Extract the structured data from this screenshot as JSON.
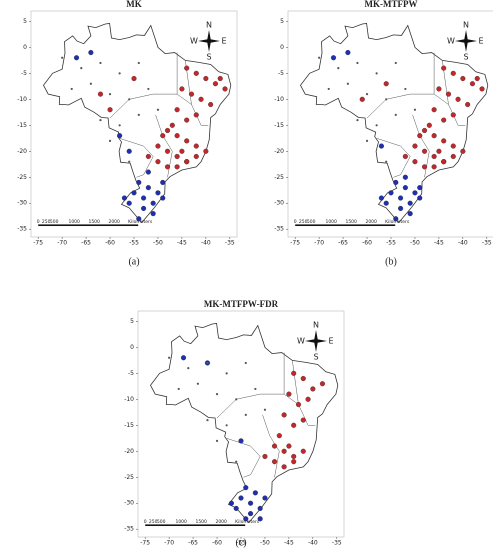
{
  "chart_data": [
    {
      "type": "scatter",
      "title": "MK",
      "caption": "(a)",
      "xlim": [
        -76.5,
        -33.5
      ],
      "ylim": [
        -36.5,
        7
      ],
      "xticks": [
        -75,
        -70,
        -65,
        -60,
        -55,
        -50,
        -45,
        -40,
        -35
      ],
      "yticks": [
        5,
        0,
        -5,
        -10,
        -15,
        -20,
        -25,
        -30,
        -35
      ],
      "compass": [
        "N",
        "S",
        "W",
        "E"
      ],
      "scale_labels": [
        "0",
        "250",
        "500",
        "1000",
        "1500",
        "2000",
        "Kilometers"
      ],
      "series": [
        {
          "color": "#c0282b",
          "x": [
            -44,
            -42,
            -40,
            -38,
            -36,
            -45,
            -43,
            -41,
            -39,
            -37,
            -46,
            -44,
            -42,
            -48,
            -46,
            -44,
            -42,
            -40,
            -50,
            -48,
            -46,
            -44,
            -42,
            -52,
            -50,
            -48,
            -46,
            -44,
            -49,
            -47,
            -45,
            -62,
            -55,
            -60
          ],
          "y": [
            -4,
            -5,
            -6,
            -7,
            -8,
            -8,
            -9,
            -10,
            -11,
            -6,
            -12,
            -14,
            -13,
            -16,
            -17,
            -18,
            -19,
            -20,
            -19,
            -20,
            -21,
            -22,
            -21,
            -21,
            -22,
            -23,
            -23,
            -22,
            -17,
            -15,
            -20,
            -9,
            -6,
            -12
          ]
        },
        {
          "color": "#1f2fb0",
          "x": [
            -54,
            -52,
            -50,
            -53,
            -51,
            -49,
            -55,
            -53,
            -51,
            -56,
            -54,
            -52,
            -57,
            -49,
            -67,
            -64,
            -56,
            -58
          ],
          "y": [
            -26,
            -27,
            -28,
            -29,
            -30,
            -29,
            -28,
            -31,
            -32,
            -30,
            -33,
            -24,
            -29,
            -26,
            -2,
            -1,
            -20,
            -17
          ]
        },
        {
          "color": "#555555",
          "x": [
            -70,
            -66,
            -62,
            -58,
            -54,
            -68,
            -64,
            -60,
            -56,
            -52,
            -62,
            -58,
            -54,
            -50,
            -60,
            -56
          ],
          "y": [
            -2,
            -4,
            -3,
            -5,
            -3,
            -8,
            -7,
            -9,
            -10,
            -8,
            -14,
            -15,
            -13,
            -12,
            -18,
            -22
          ]
        }
      ]
    },
    {
      "type": "scatter",
      "title": "MK-MTFPW",
      "caption": "(b)",
      "xlim": [
        -76.5,
        -33.5
      ],
      "ylim": [
        -36.5,
        7
      ],
      "xticks": [
        -75,
        -70,
        -65,
        -60,
        -55,
        -50,
        -45,
        -40,
        -35
      ],
      "yticks": [
        5,
        0,
        -5,
        -10,
        -15,
        -20,
        -25,
        -30,
        -35
      ],
      "compass": [
        "N",
        "S",
        "W",
        "E"
      ],
      "scale_labels": [
        "0",
        "250",
        "500",
        "1000",
        "1500",
        "2000",
        "Kilometers"
      ],
      "series": [
        {
          "color": "#c0282b",
          "x": [
            -44,
            -42,
            -40,
            -38,
            -36,
            -45,
            -43,
            -41,
            -39,
            -37,
            -46,
            -44,
            -42,
            -48,
            -46,
            -44,
            -42,
            -40,
            -50,
            -48,
            -46,
            -44,
            -42,
            -52,
            -50,
            -48,
            -46,
            -44,
            -49,
            -47,
            -45,
            -61,
            -56
          ],
          "y": [
            -4,
            -5,
            -6,
            -7,
            -8,
            -8,
            -9,
            -10,
            -11,
            -6,
            -12,
            -14,
            -13,
            -16,
            -17,
            -18,
            -19,
            -20,
            -19,
            -20,
            -21,
            -22,
            -21,
            -21,
            -22,
            -23,
            -23,
            -22,
            -17,
            -15,
            -20,
            -10,
            -7
          ]
        },
        {
          "color": "#1f2fb0",
          "x": [
            -54,
            -52,
            -50,
            -53,
            -51,
            -49,
            -55,
            -53,
            -51,
            -56,
            -54,
            -52,
            -57,
            -49,
            -67,
            -64,
            -57
          ],
          "y": [
            -26,
            -27,
            -28,
            -29,
            -30,
            -29,
            -28,
            -31,
            -32,
            -30,
            -33,
            -25,
            -29,
            -27,
            -2,
            -1,
            -19
          ]
        },
        {
          "color": "#555555",
          "x": [
            -70,
            -66,
            -62,
            -58,
            -54,
            -68,
            -64,
            -60,
            -56,
            -52,
            -62,
            -58,
            -54,
            -50,
            -60,
            -56
          ],
          "y": [
            -2,
            -4,
            -3,
            -5,
            -3,
            -8,
            -7,
            -9,
            -10,
            -8,
            -14,
            -15,
            -13,
            -12,
            -18,
            -22
          ]
        }
      ]
    },
    {
      "type": "scatter",
      "title": "MK-MTFPW-FDR",
      "caption": "(c)",
      "xlim": [
        -76.5,
        -33.5
      ],
      "ylim": [
        -36.5,
        7
      ],
      "xticks": [
        -75,
        -70,
        -65,
        -60,
        -55,
        -50,
        -45,
        -40,
        -35
      ],
      "yticks": [
        5,
        0,
        -5,
        -10,
        -15,
        -20,
        -25,
        -30,
        -35
      ],
      "compass": [
        "N",
        "S",
        "W",
        "E"
      ],
      "scale_labels": [
        "0",
        "250",
        "500",
        "1000",
        "1500",
        "2000",
        "Kilometers"
      ],
      "series": [
        {
          "color": "#c0282b",
          "x": [
            -44,
            -42,
            -40,
            -38,
            -45,
            -43,
            -41,
            -46,
            -44,
            -42,
            -48,
            -46,
            -44,
            -42,
            -50,
            -48,
            -46,
            -44,
            -47,
            -45
          ],
          "y": [
            -5,
            -6,
            -8,
            -7,
            -9,
            -11,
            -10,
            -13,
            -15,
            -14,
            -19,
            -20,
            -21,
            -20,
            -21,
            -22,
            -23,
            -22,
            -17,
            -19
          ]
        },
        {
          "color": "#1f2fb0",
          "x": [
            -54,
            -52,
            -50,
            -53,
            -51,
            -55,
            -53,
            -51,
            -56,
            -54,
            -57,
            -67,
            -62,
            -55
          ],
          "y": [
            -27,
            -28,
            -29,
            -30,
            -31,
            -29,
            -32,
            -33,
            -31,
            -33,
            -30,
            -2,
            -3,
            -18
          ]
        },
        {
          "color": "#555555",
          "x": [
            -70,
            -66,
            -62,
            -58,
            -54,
            -68,
            -64,
            -60,
            -56,
            -52,
            -62,
            -58,
            -54,
            -50,
            -60,
            -56
          ],
          "y": [
            -2,
            -4,
            -3,
            -5,
            -3,
            -8,
            -7,
            -9,
            -10,
            -8,
            -14,
            -15,
            -13,
            -12,
            -18,
            -22
          ]
        }
      ]
    }
  ]
}
